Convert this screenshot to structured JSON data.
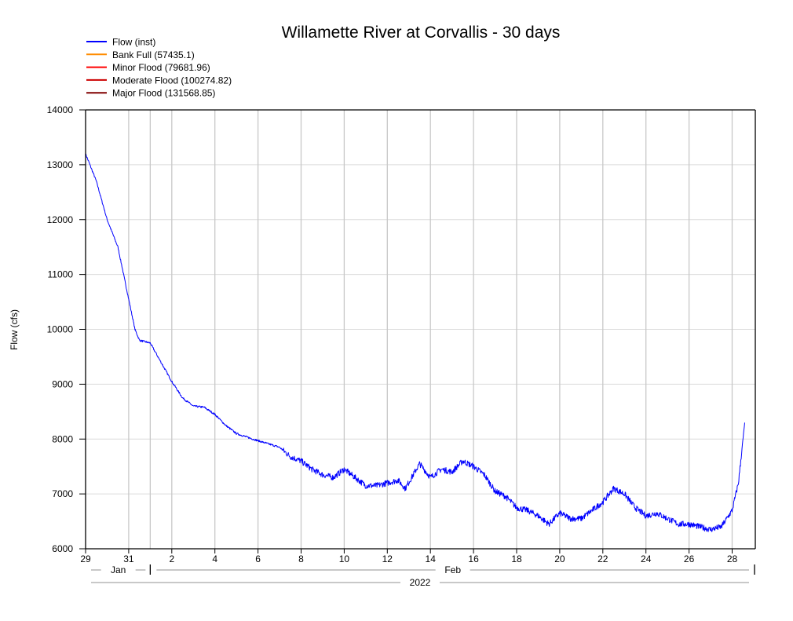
{
  "chart_data": {
    "type": "line",
    "title": "Willamette River at Corvallis - 30 days",
    "ylabel": "Flow (cfs)",
    "xlabel": "",
    "ylim": [
      6000,
      14000
    ],
    "yticks": [
      6000,
      7000,
      8000,
      9000,
      10000,
      11000,
      12000,
      13000,
      14000
    ],
    "xlim": [
      "2022-01-29T00:00",
      "2022-03-01T02:00"
    ],
    "xticks": [
      {
        "date": "2022-01-29",
        "label": "29"
      },
      {
        "date": "2022-01-31",
        "label": "31"
      },
      {
        "date": "2022-02-02",
        "label": "2"
      },
      {
        "date": "2022-02-04",
        "label": "4"
      },
      {
        "date": "2022-02-06",
        "label": "6"
      },
      {
        "date": "2022-02-08",
        "label": "8"
      },
      {
        "date": "2022-02-10",
        "label": "10"
      },
      {
        "date": "2022-02-12",
        "label": "12"
      },
      {
        "date": "2022-02-14",
        "label": "14"
      },
      {
        "date": "2022-02-16",
        "label": "16"
      },
      {
        "date": "2022-02-18",
        "label": "18"
      },
      {
        "date": "2022-02-20",
        "label": "20"
      },
      {
        "date": "2022-02-22",
        "label": "22"
      },
      {
        "date": "2022-02-24",
        "label": "24"
      },
      {
        "date": "2022-02-26",
        "label": "26"
      },
      {
        "date": "2022-02-28",
        "label": "28"
      }
    ],
    "months": [
      {
        "label": "Jan",
        "start": "2022-01-29",
        "end": "2022-02-01"
      },
      {
        "label": "Feb",
        "start": "2022-02-01",
        "end": "2022-03-01"
      }
    ],
    "year": "2022",
    "grid": true,
    "legend_placement": "top-left",
    "legend": [
      {
        "label": "Flow (inst)",
        "color": "#0000ff"
      },
      {
        "label": "Bank Full (57435.1)",
        "color": "#ff8c00"
      },
      {
        "label": "Minor Flood (79681.96)",
        "color": "#ff0000"
      },
      {
        "label": "Moderate Flood (100274.82)",
        "color": "#cc0000"
      },
      {
        "label": "Major Flood (131568.85)",
        "color": "#800000"
      }
    ],
    "series": [
      {
        "name": "Flow (inst)",
        "color": "#0000ff",
        "points": [
          [
            "2022-01-29T00:00",
            13200
          ],
          [
            "2022-01-29T12:00",
            12700
          ],
          [
            "2022-01-30T00:00",
            12000
          ],
          [
            "2022-01-30T12:00",
            11500
          ],
          [
            "2022-01-31T00:00",
            10550
          ],
          [
            "2022-01-31T07:00",
            10000
          ],
          [
            "2022-01-31T12:00",
            9800
          ],
          [
            "2022-02-01T00:00",
            9750
          ],
          [
            "2022-02-01T12:00",
            9400
          ],
          [
            "2022-02-02T00:00",
            9050
          ],
          [
            "2022-02-02T12:00",
            8750
          ],
          [
            "2022-02-03T00:00",
            8600
          ],
          [
            "2022-02-03T12:00",
            8580
          ],
          [
            "2022-02-04T00:00",
            8450
          ],
          [
            "2022-02-04T12:00",
            8250
          ],
          [
            "2022-02-05T00:00",
            8100
          ],
          [
            "2022-02-06T00:00",
            7970
          ],
          [
            "2022-02-07T00:00",
            7850
          ],
          [
            "2022-02-07T12:00",
            7680
          ],
          [
            "2022-02-08T00:00",
            7600
          ],
          [
            "2022-02-08T12:00",
            7450
          ],
          [
            "2022-02-09T00:00",
            7350
          ],
          [
            "2022-02-09T12:00",
            7300
          ],
          [
            "2022-02-10T00:00",
            7450
          ],
          [
            "2022-02-10T12:00",
            7300
          ],
          [
            "2022-02-11T00:00",
            7150
          ],
          [
            "2022-02-11T12:00",
            7150
          ],
          [
            "2022-02-12T00:00",
            7200
          ],
          [
            "2022-02-12T12:00",
            7250
          ],
          [
            "2022-02-12T20:00",
            7100
          ],
          [
            "2022-02-13T12:00",
            7550
          ],
          [
            "2022-02-14T00:00",
            7300
          ],
          [
            "2022-02-14T12:00",
            7450
          ],
          [
            "2022-02-15T00:00",
            7400
          ],
          [
            "2022-02-15T12:00",
            7600
          ],
          [
            "2022-02-16T00:00",
            7500
          ],
          [
            "2022-02-16T12:00",
            7350
          ],
          [
            "2022-02-17T00:00",
            7050
          ],
          [
            "2022-02-17T12:00",
            6950
          ],
          [
            "2022-02-18T00:00",
            6750
          ],
          [
            "2022-02-18T12:00",
            6700
          ],
          [
            "2022-02-19T00:00",
            6600
          ],
          [
            "2022-02-19T12:00",
            6450
          ],
          [
            "2022-02-20T00:00",
            6650
          ],
          [
            "2022-02-20T12:00",
            6550
          ],
          [
            "2022-02-21T00:00",
            6550
          ],
          [
            "2022-02-21T12:00",
            6700
          ],
          [
            "2022-02-22T00:00",
            6850
          ],
          [
            "2022-02-22T12:00",
            7100
          ],
          [
            "2022-02-23T00:00",
            7000
          ],
          [
            "2022-02-23T12:00",
            6750
          ],
          [
            "2022-02-24T00:00",
            6600
          ],
          [
            "2022-02-24T12:00",
            6650
          ],
          [
            "2022-02-25T00:00",
            6550
          ],
          [
            "2022-02-25T12:00",
            6450
          ],
          [
            "2022-02-26T00:00",
            6450
          ],
          [
            "2022-02-26T12:00",
            6400
          ],
          [
            "2022-02-27T00:00",
            6350
          ],
          [
            "2022-02-27T12:00",
            6400
          ],
          [
            "2022-02-28T00:00",
            6700
          ],
          [
            "2022-02-28T07:00",
            7200
          ],
          [
            "2022-02-28T14:00",
            8300
          ]
        ]
      }
    ]
  }
}
